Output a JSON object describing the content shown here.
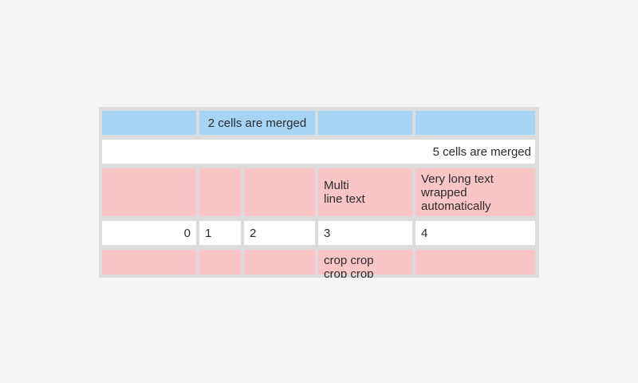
{
  "colors": {
    "page_bg": "#f5f5f5",
    "table_bg": "#dcdcdc",
    "blue_cell": "#a6d4f5",
    "pink_cell": "#fac6c5",
    "white_cell": "#ffffff",
    "text_color": "#2b2b2b"
  },
  "table": {
    "merged_two_label": "2 cells are merged",
    "merged_five_label": "5 cells are merged",
    "multi_line_label": "Multi\nline text",
    "wrapped_label": "Very long text wrapped automatically",
    "numbers": [
      "0",
      "1",
      "2",
      "3",
      "4"
    ],
    "crop_label": "crop crop\ncrop crop"
  }
}
